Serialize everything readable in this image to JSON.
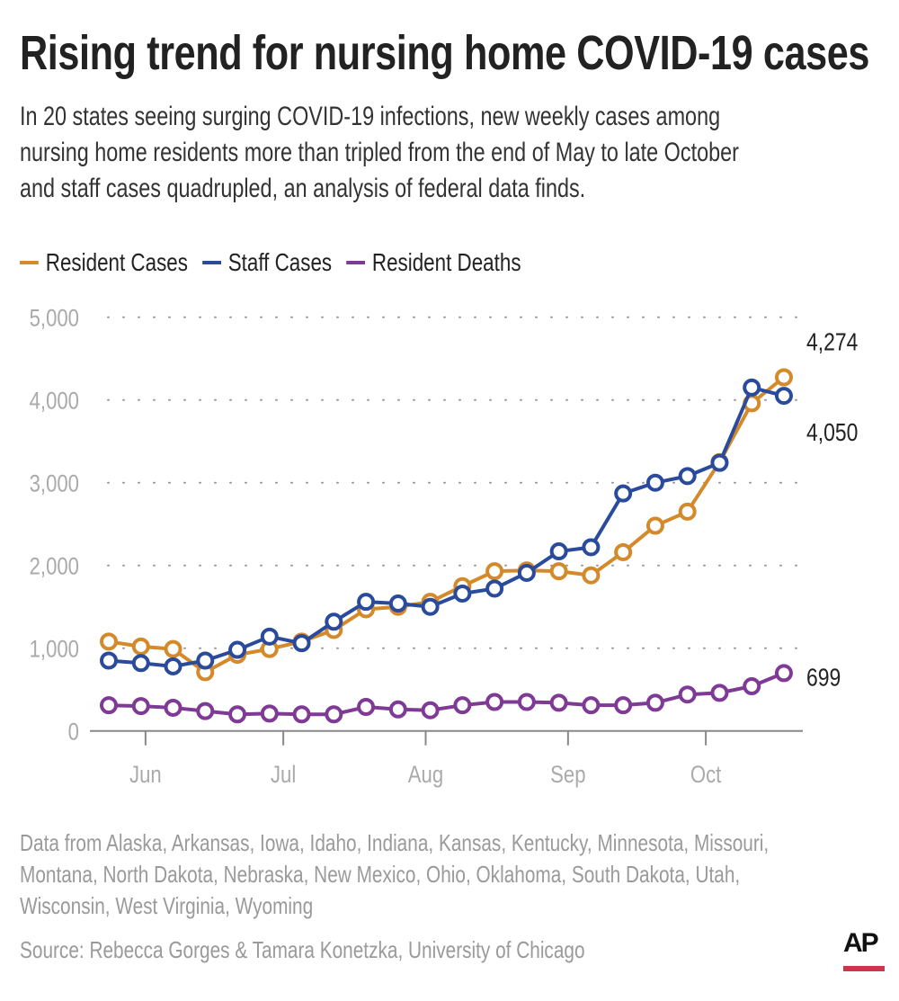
{
  "title": "Rising trend for nursing home COVID-19 cases",
  "subtitle": [
    "In 20 states seeing surging COVID-19 infections, new weekly cases among",
    "nursing home residents more than tripled from the end of May to late October",
    "and staff cases quadrupled, an analysis of federal data finds."
  ],
  "footer": {
    "note": [
      "Data from Alaska, Arkansas, Iowa, Idaho, Indiana, Kansas, Kentucky, Minnesota, Missouri,",
      "Montana, North Dakota, Nebraska, New Mexico, Ohio, Oklahoma, South Dakota, Utah,",
      "Wisconsin, West Virginia, Wyoming"
    ],
    "source": "Source: Rebecca Gorges & Tamara Konetzka, University of Chicago",
    "logo": "AP"
  },
  "chart_data": {
    "type": "line",
    "title": "",
    "xlabel": "",
    "ylabel": "",
    "ylim": [
      0,
      5000
    ],
    "yticks": [
      0,
      1000,
      2000,
      3000,
      4000,
      5000
    ],
    "ytick_labels": [
      "0",
      "1,000",
      "2,000",
      "3,000",
      "4,000",
      "5,000"
    ],
    "xticks": [
      {
        "date": "2020-06-01",
        "label": "Jun"
      },
      {
        "date": "2020-07-01",
        "label": "Jul"
      },
      {
        "date": "2020-08-01",
        "label": "Aug"
      },
      {
        "date": "2020-09-01",
        "label": "Sep"
      },
      {
        "date": "2020-10-01",
        "label": "Oct"
      }
    ],
    "grid": "horizontal dotted",
    "legend": "top-left",
    "x": [
      "2020-05-24",
      "2020-05-31",
      "2020-06-07",
      "2020-06-14",
      "2020-06-21",
      "2020-06-28",
      "2020-07-05",
      "2020-07-12",
      "2020-07-19",
      "2020-07-26",
      "2020-08-02",
      "2020-08-09",
      "2020-08-16",
      "2020-08-23",
      "2020-08-30",
      "2020-09-06",
      "2020-09-13",
      "2020-09-20",
      "2020-09-27",
      "2020-10-04",
      "2020-10-11",
      "2020-10-18"
    ],
    "series": [
      {
        "name": "Resident Cases",
        "color": "#d48a2a",
        "end_label": "4,274",
        "values": [
          1080,
          1020,
          990,
          710,
          920,
          990,
          1080,
          1220,
          1470,
          1500,
          1560,
          1750,
          1930,
          1940,
          1930,
          1880,
          2160,
          2480,
          2650,
          3250,
          3960,
          4274
        ]
      },
      {
        "name": "Staff Cases",
        "color": "#2a4b9b",
        "end_label": "4,050",
        "values": [
          850,
          820,
          780,
          850,
          980,
          1140,
          1060,
          1320,
          1560,
          1540,
          1500,
          1660,
          1720,
          1910,
          2170,
          2220,
          2870,
          3000,
          3080,
          3240,
          4150,
          4050
        ]
      },
      {
        "name": "Resident Deaths",
        "color": "#7e3a94",
        "end_label": "699",
        "values": [
          310,
          300,
          280,
          240,
          200,
          210,
          200,
          200,
          290,
          260,
          250,
          310,
          350,
          350,
          340,
          310,
          310,
          340,
          440,
          460,
          540,
          699
        ]
      }
    ]
  }
}
